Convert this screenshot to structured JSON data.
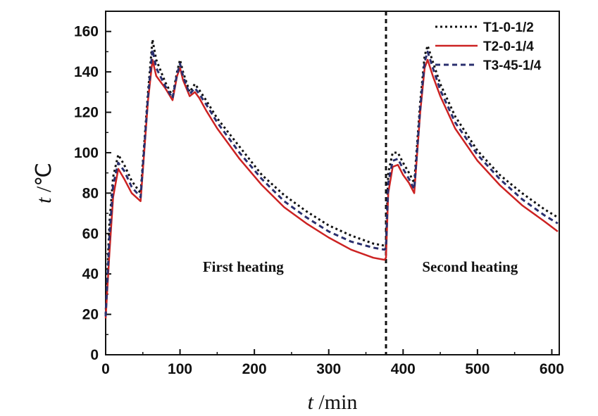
{
  "chart_data": {
    "type": "line",
    "xlabel": {
      "italic": "t",
      "rest": " /min"
    },
    "ylabel": {
      "italic": "t",
      "rest": " /℃"
    },
    "xlim": [
      0,
      610
    ],
    "ylim": [
      0,
      170
    ],
    "xticks": [
      0,
      100,
      200,
      300,
      400,
      500,
      600
    ],
    "yticks": [
      0,
      20,
      40,
      60,
      80,
      100,
      120,
      140,
      160
    ],
    "grid": false,
    "legend": "top-right",
    "divider_x": 377,
    "annotations": [
      {
        "text": "First heating",
        "x": 185,
        "y": 40
      },
      {
        "text": "Second heating",
        "x": 490,
        "y": 40
      }
    ],
    "series": [
      {
        "name": "T1-0-1/2",
        "color": "#111111",
        "dash": "3,4",
        "x": [
          0,
          5,
          10,
          17,
          25,
          35,
          47,
          57,
          63,
          68,
          80,
          90,
          96,
          100,
          104,
          113,
          120,
          126,
          135,
          150,
          180,
          210,
          240,
          270,
          300,
          330,
          360,
          375,
          377,
          380,
          386,
          393,
          400,
          408,
          415,
          423,
          429,
          433,
          440,
          450,
          470,
          500,
          530,
          560,
          590,
          608
        ],
        "y": [
          20,
          65,
          88,
          99,
          94,
          86,
          80,
          130,
          156,
          146,
          135,
          128,
          140,
          146,
          140,
          130,
          134,
          131,
          126,
          117,
          103,
          89,
          79,
          71,
          64,
          59,
          55,
          54,
          55,
          90,
          100,
          100,
          95,
          90,
          85,
          125,
          148,
          153,
          145,
          134,
          118,
          101,
          89,
          80,
          72,
          68
        ]
      },
      {
        "name": "T2-0-1/4",
        "color": "#cc2222",
        "dash": "",
        "x": [
          0,
          5,
          10,
          17,
          25,
          35,
          47,
          57,
          63,
          68,
          80,
          90,
          96,
          100,
          104,
          113,
          120,
          126,
          135,
          150,
          180,
          210,
          240,
          270,
          300,
          330,
          360,
          375,
          377,
          380,
          386,
          393,
          400,
          408,
          415,
          423,
          429,
          433,
          440,
          450,
          470,
          500,
          530,
          560,
          590,
          608
        ],
        "y": [
          18,
          50,
          78,
          92,
          87,
          80,
          76,
          126,
          146,
          138,
          132,
          126,
          138,
          142,
          136,
          128,
          130,
          127,
          121,
          112,
          97,
          84,
          73,
          65,
          58,
          52,
          48,
          47,
          48,
          80,
          93,
          94,
          89,
          85,
          80,
          120,
          142,
          146,
          138,
          128,
          112,
          96,
          84,
          74,
          66,
          61
        ]
      },
      {
        "name": "T3-45-1/4",
        "color": "#2a2f6e",
        "dash": "7,5",
        "x": [
          0,
          5,
          10,
          17,
          25,
          35,
          47,
          57,
          63,
          68,
          80,
          90,
          96,
          100,
          104,
          113,
          120,
          126,
          135,
          150,
          180,
          210,
          240,
          270,
          300,
          330,
          360,
          375,
          377,
          380,
          386,
          393,
          400,
          408,
          415,
          423,
          429,
          433,
          440,
          450,
          470,
          500,
          530,
          560,
          590,
          608
        ],
        "y": [
          19,
          58,
          84,
          95,
          91,
          83,
          78,
          128,
          151,
          142,
          133,
          127,
          139,
          144,
          138,
          129,
          132,
          129,
          124,
          115,
          100,
          87,
          76,
          68,
          61,
          56,
          53,
          52,
          53,
          85,
          96,
          97,
          92,
          87,
          82,
          122,
          145,
          150,
          142,
          131,
          115,
          99,
          87,
          77,
          69,
          65
        ]
      }
    ]
  }
}
